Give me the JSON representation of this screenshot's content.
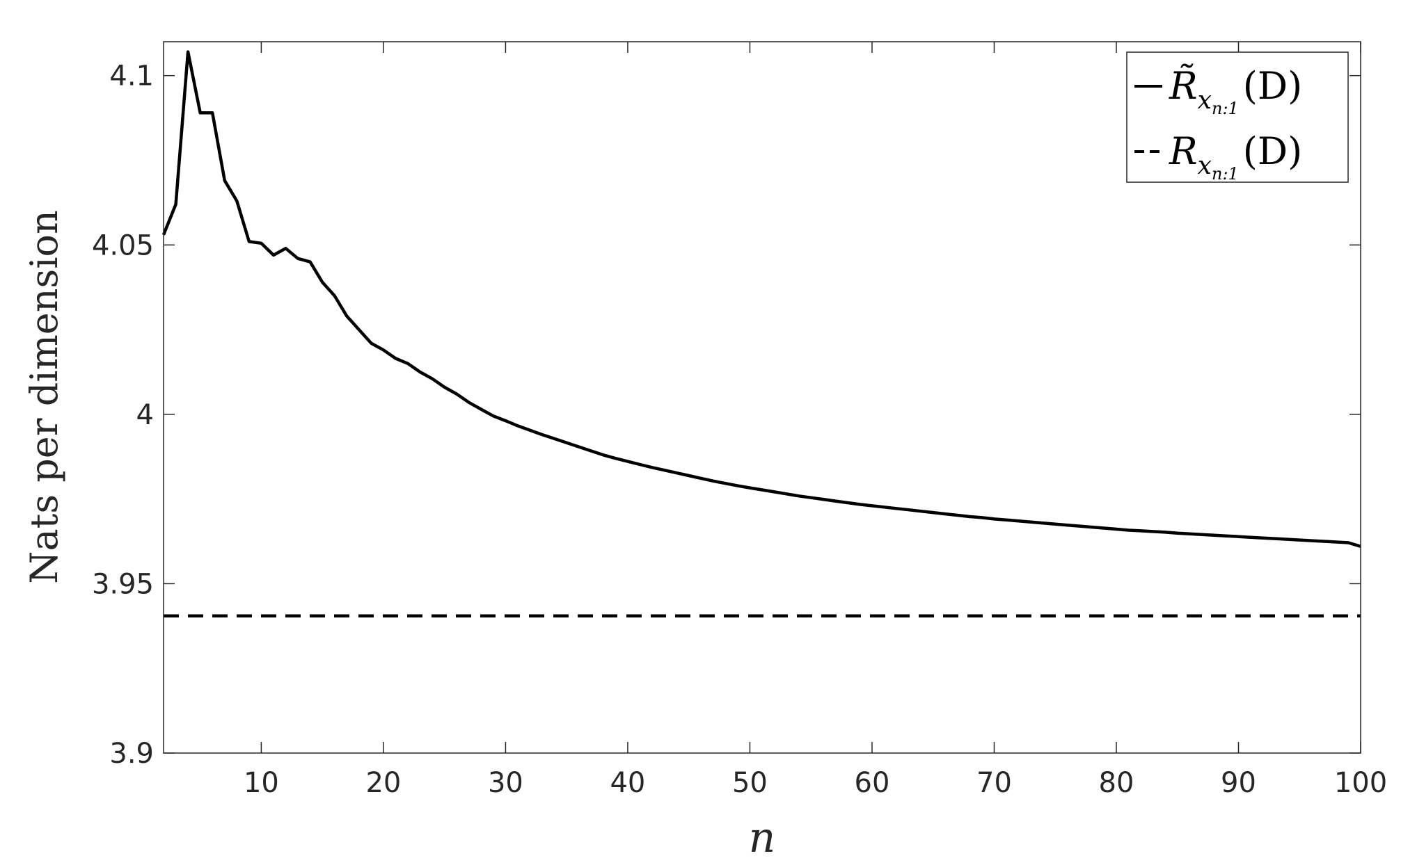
{
  "chart_data": {
    "type": "line",
    "title": "",
    "xlabel": "n",
    "ylabel": "Nats per dimension",
    "xlim": [
      2,
      100
    ],
    "ylim": [
      3.9,
      4.11
    ],
    "x_ticks": [
      10,
      20,
      30,
      40,
      50,
      60,
      70,
      80,
      90,
      100
    ],
    "y_ticks": [
      3.9,
      3.95,
      4,
      4.05,
      4.1
    ],
    "x_tick_labels": [
      "10",
      "20",
      "30",
      "40",
      "50",
      "60",
      "70",
      "80",
      "90",
      "100"
    ],
    "y_tick_labels": [
      "3.9",
      "3.95",
      "4",
      "4.05",
      "4.1"
    ],
    "grid": false,
    "legend_position": "top-right",
    "series": [
      {
        "name": "R̃_{x_{n:1}}(D)",
        "legend_main": "R̃",
        "legend_sub": "x",
        "legend_subsub": "n:1",
        "legend_arg": "(D)",
        "style": "solid",
        "color": "#000000",
        "x": [
          2,
          3,
          4,
          5,
          6,
          7,
          8,
          9,
          10,
          11,
          12,
          13,
          14,
          15,
          16,
          17,
          18,
          19,
          20,
          21,
          22,
          23,
          24,
          25,
          26,
          27,
          28,
          29,
          30,
          31,
          32,
          33,
          34,
          35,
          36,
          37,
          38,
          39,
          40,
          41,
          42,
          43,
          44,
          45,
          46,
          47,
          48,
          49,
          50,
          51,
          52,
          53,
          54,
          55,
          56,
          57,
          58,
          59,
          60,
          61,
          62,
          63,
          64,
          65,
          66,
          67,
          68,
          69,
          70,
          71,
          72,
          73,
          74,
          75,
          76,
          77,
          78,
          79,
          80,
          81,
          82,
          83,
          84,
          85,
          86,
          87,
          88,
          89,
          90,
          91,
          92,
          93,
          94,
          95,
          96,
          97,
          98,
          99,
          100
        ],
        "values": [
          4.053,
          4.062,
          4.107,
          4.089,
          4.089,
          4.069,
          4.063,
          4.051,
          4.0505,
          4.047,
          4.049,
          4.046,
          4.045,
          4.039,
          4.035,
          4.029,
          4.025,
          4.021,
          4.019,
          4.0165,
          4.015,
          4.0125,
          4.0105,
          4.008,
          4.006,
          4.0035,
          4.0015,
          3.9995,
          3.9981,
          3.9966,
          3.9953,
          3.994,
          3.9928,
          3.9916,
          3.9904,
          3.9892,
          3.988,
          3.987,
          3.9861,
          3.9852,
          3.9843,
          3.9835,
          3.9827,
          3.9819,
          3.9811,
          3.9803,
          3.9796,
          3.9789,
          3.9783,
          3.9777,
          3.9771,
          3.9765,
          3.9759,
          3.9754,
          3.9749,
          3.9744,
          3.9739,
          3.9734,
          3.973,
          3.9726,
          3.9722,
          3.9718,
          3.9714,
          3.971,
          3.9706,
          3.9702,
          3.9698,
          3.9695,
          3.9691,
          3.9688,
          3.9685,
          3.9682,
          3.9679,
          3.9676,
          3.9673,
          3.967,
          3.9667,
          3.9664,
          3.9661,
          3.9658,
          3.9656,
          3.9654,
          3.9652,
          3.9649,
          3.9647,
          3.9645,
          3.9643,
          3.9641,
          3.9639,
          3.9637,
          3.9635,
          3.9633,
          3.9631,
          3.9629,
          3.9627,
          3.9625,
          3.9623,
          3.9621,
          3.961
        ]
      },
      {
        "name": "R_{x_{n:1}}(D)",
        "legend_main": "R",
        "legend_sub": "x",
        "legend_subsub": "n:1",
        "legend_arg": "(D)",
        "style": "dashed",
        "color": "#000000",
        "x": [
          2,
          100
        ],
        "values": [
          3.9405,
          3.9405
        ]
      }
    ]
  },
  "colors": {
    "axis": "#262626",
    "line": "#000000",
    "background": "#ffffff"
  }
}
